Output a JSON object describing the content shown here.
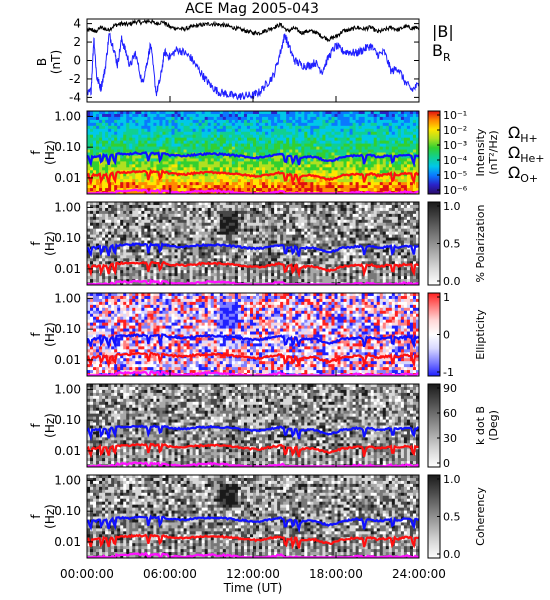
{
  "chart_data": {
    "type": "spectrogram-stack",
    "title": "ACE Mag 2005-043",
    "x_axis": {
      "label": "Time (UT)",
      "range_hours": [
        0,
        24
      ],
      "tick_labels": [
        "00:00:00",
        "06:00:00",
        "12:00:00",
        "18:00:00",
        "24:00:00"
      ]
    },
    "field_panel": {
      "ylabel_line1": "B",
      "ylabel_line2": "(nT)",
      "ylim": [
        -4.5,
        4.5
      ],
      "yticks": [
        "4",
        "2",
        "0",
        "-2",
        "-4"
      ],
      "series": [
        {
          "name": "|B|",
          "color": "#000000",
          "points": [
            [
              0,
              3.2
            ],
            [
              0.3,
              3.4
            ],
            [
              0.6,
              3.1
            ],
            [
              1,
              3.6
            ],
            [
              1.5,
              3.3
            ],
            [
              2,
              3.8
            ],
            [
              2.5,
              4.0
            ],
            [
              3,
              3.9
            ],
            [
              3.5,
              4.2
            ],
            [
              4,
              4.1
            ],
            [
              4.5,
              4.3
            ],
            [
              5,
              4.0
            ],
            [
              5.5,
              4.2
            ],
            [
              6,
              3.6
            ],
            [
              6.5,
              3.5
            ],
            [
              7,
              3.4
            ],
            [
              7.5,
              3.6
            ],
            [
              8,
              3.8
            ],
            [
              8.5,
              3.9
            ],
            [
              9,
              4.0
            ],
            [
              9.5,
              3.9
            ],
            [
              10,
              3.8
            ],
            [
              10.5,
              3.6
            ],
            [
              11,
              3.4
            ],
            [
              11.5,
              3.2
            ],
            [
              12,
              3.0
            ],
            [
              12.5,
              3.0
            ],
            [
              13,
              3.3
            ],
            [
              13.5,
              3.6
            ],
            [
              14,
              3.9
            ],
            [
              14.5,
              3.2
            ],
            [
              15,
              3.5
            ],
            [
              15.5,
              3.0
            ],
            [
              16,
              3.2
            ],
            [
              16.5,
              3.1
            ],
            [
              17,
              2.6
            ],
            [
              17.5,
              2.3
            ],
            [
              18,
              2.6
            ],
            [
              18.5,
              3.2
            ],
            [
              19,
              3.3
            ],
            [
              19.5,
              3.6
            ],
            [
              20,
              3.4
            ],
            [
              20.5,
              3.6
            ],
            [
              21,
              3.1
            ],
            [
              21.5,
              3.3
            ],
            [
              22,
              3.6
            ],
            [
              22.5,
              3.3
            ],
            [
              23,
              3.7
            ],
            [
              23.5,
              3.5
            ],
            [
              24,
              3.6
            ]
          ]
        },
        {
          "name": "B_R",
          "color": "#2020ff",
          "points": [
            [
              0,
              -3.8
            ],
            [
              0.3,
              -3.2
            ],
            [
              0.5,
              2.5
            ],
            [
              0.7,
              -1.8
            ],
            [
              1,
              -3.0
            ],
            [
              1.3,
              -1.0
            ],
            [
              1.6,
              2.8
            ],
            [
              1.9,
              1.5
            ],
            [
              2.2,
              -0.5
            ],
            [
              2.5,
              2.3
            ],
            [
              2.8,
              1.0
            ],
            [
              3.1,
              -0.6
            ],
            [
              3.5,
              0.8
            ],
            [
              4,
              -2.5
            ],
            [
              4.3,
              -0.5
            ],
            [
              4.6,
              1.8
            ],
            [
              5,
              -3.6
            ],
            [
              5.3,
              -2.0
            ],
            [
              5.6,
              0.9
            ],
            [
              6,
              0.4
            ],
            [
              6.5,
              1.2
            ],
            [
              7,
              0.9
            ],
            [
              7.5,
              0.3
            ],
            [
              8,
              -0.8
            ],
            [
              8.5,
              -1.9
            ],
            [
              9,
              -2.8
            ],
            [
              9.5,
              -3.4
            ],
            [
              10,
              -3.6
            ],
            [
              10.5,
              -3.8
            ],
            [
              11,
              -3.9
            ],
            [
              11.5,
              -3.8
            ],
            [
              12,
              -3.8
            ],
            [
              12.5,
              -3.4
            ],
            [
              13,
              -2.5
            ],
            [
              13.5,
              -1.6
            ],
            [
              14,
              1.0
            ],
            [
              14.3,
              2.8
            ],
            [
              14.6,
              1.5
            ],
            [
              15,
              0.0
            ],
            [
              15.5,
              -0.5
            ],
            [
              16,
              -0.6
            ],
            [
              16.5,
              -0.2
            ],
            [
              17,
              -1.2
            ],
            [
              17.5,
              0.5
            ],
            [
              18,
              1.6
            ],
            [
              18.5,
              1.0
            ],
            [
              19,
              0.9
            ],
            [
              19.5,
              0.8
            ],
            [
              20,
              1.2
            ],
            [
              20.5,
              1.6
            ],
            [
              21,
              0.6
            ],
            [
              21.5,
              0.9
            ],
            [
              22,
              -1.2
            ],
            [
              22.5,
              -0.8
            ],
            [
              23,
              -2.4
            ],
            [
              23.5,
              -3.2
            ],
            [
              24,
              -2.6
            ]
          ]
        }
      ],
      "legend": [
        {
          "label": "|B|",
          "color": "#000000"
        },
        {
          "label": "B",
          "subscript": "R",
          "color": "#2020ff"
        }
      ]
    },
    "spectrogram_panels": [
      {
        "ylabel_line1": "f",
        "ylabel_line2": "(Hz)",
        "colormap": "rainbow",
        "colorbar_title_line1": "Intensity",
        "colorbar_title_line2": "(nT²/Hz)",
        "colorbar_ticks": [
          "10⁻¹",
          "10⁻²",
          "10⁻³",
          "10⁻⁴",
          "10⁻⁵",
          "10⁻⁶"
        ]
      },
      {
        "ylabel_line1": "f",
        "ylabel_line2": "(Hz)",
        "colormap": "gray",
        "colorbar_title_line1": "% Polarization",
        "colorbar_title_line2": "",
        "colorbar_ticks": [
          "1.0",
          "0.5",
          "0.0"
        ]
      },
      {
        "ylabel_line1": "f",
        "ylabel_line2": "(Hz)",
        "colormap": "bwr",
        "colorbar_title_line1": "Ellipticity",
        "colorbar_title_line2": "",
        "colorbar_ticks": [
          "1",
          "0",
          "-1"
        ]
      },
      {
        "ylabel_line1": "f",
        "ylabel_line2": "(Hz)",
        "colormap": "gray",
        "colorbar_title_line1": "k dot B",
        "colorbar_title_line2": "(Deg)",
        "colorbar_ticks": [
          "90",
          "60",
          "30",
          "0"
        ]
      },
      {
        "ylabel_line1": "f",
        "ylabel_line2": "(Hz)",
        "colormap": "gray",
        "colorbar_title_line1": "Coherency",
        "colorbar_title_line2": "",
        "colorbar_ticks": [
          "1.0",
          "0.5",
          "0.0"
        ]
      }
    ],
    "frequency_axis": {
      "scale": "log",
      "range_hz": [
        0.003,
        1.5
      ],
      "tick_labels": [
        "1.00",
        "0.10",
        "0.01"
      ],
      "tick_values_hz": [
        1.0,
        0.1,
        0.01
      ]
    },
    "gyrofrequency_lines": {
      "legend_symbol": "Ω",
      "series": [
        {
          "name": "H+",
          "color": "#1010ff",
          "mass_per_charge": 1
        },
        {
          "name": "He+",
          "color": "#ff1010",
          "mass_per_charge": 4
        },
        {
          "name": "O+",
          "color": "#ff10ff",
          "mass_per_charge": 16
        }
      ]
    }
  }
}
